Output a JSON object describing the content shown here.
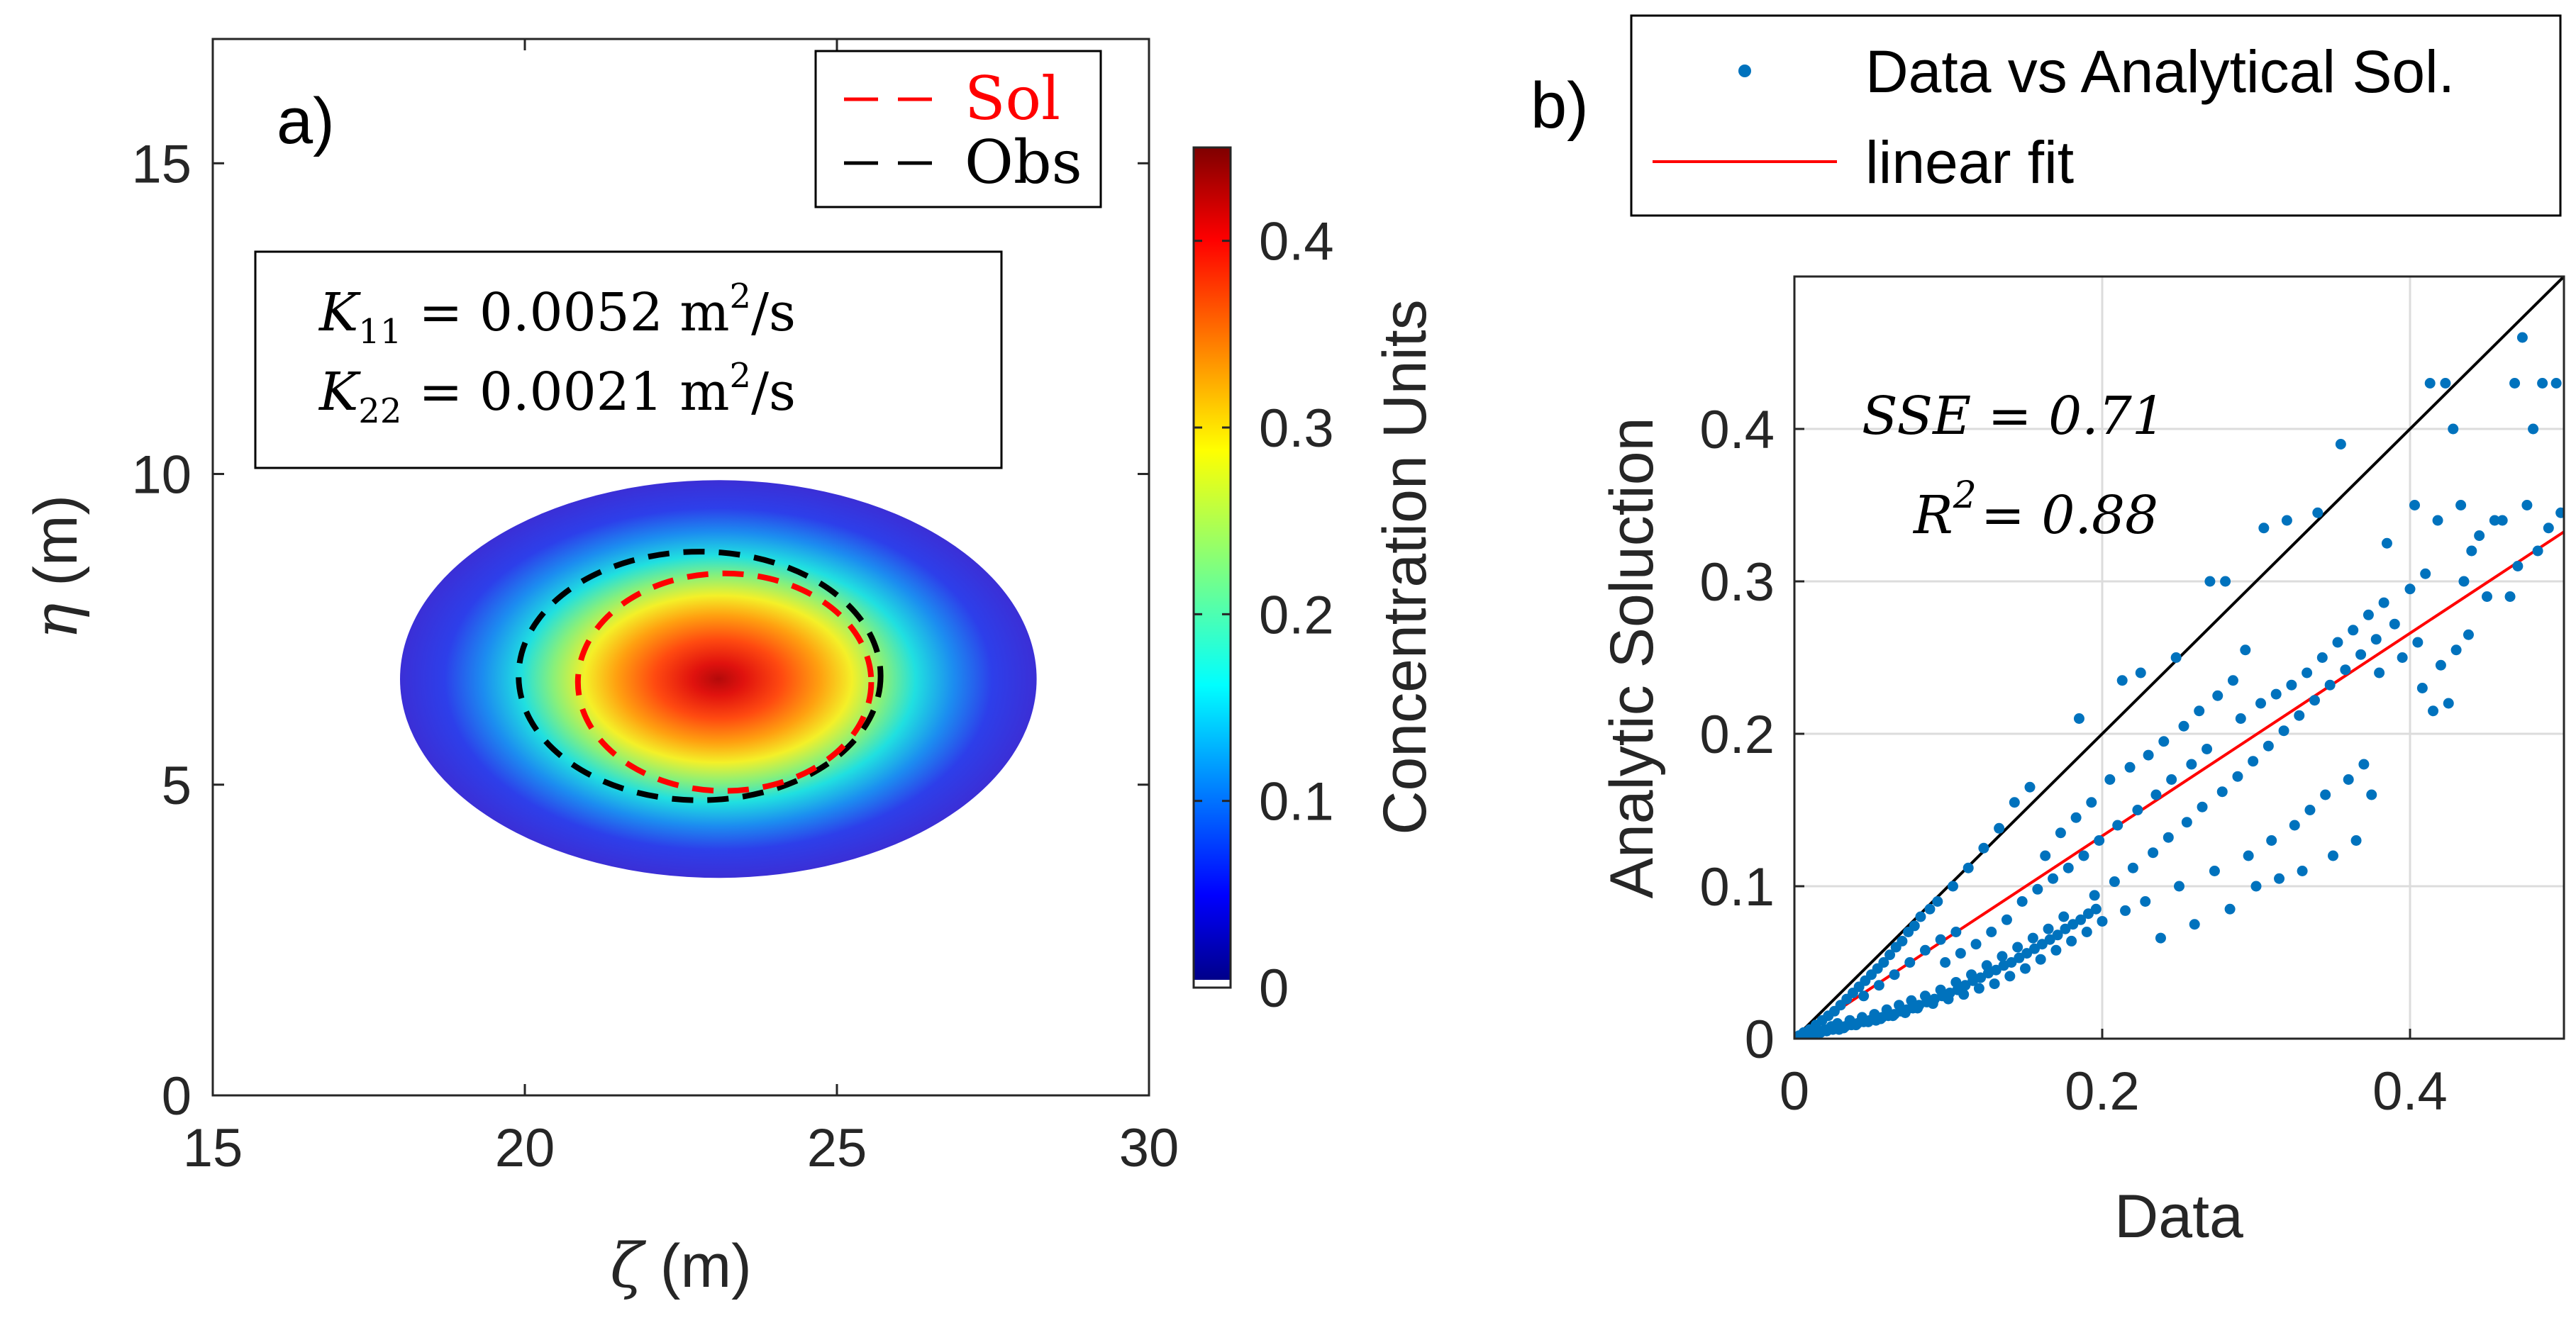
{
  "chart_data": [
    {
      "type": "heatmap",
      "panel_label": "a)",
      "xlabel_symbol": "ζ",
      "xlabel_unit": " (m)",
      "ylabel_symbol": "η",
      "ylabel_unit": " (m)",
      "xlim": [
        15,
        30
      ],
      "ylim": [
        0,
        17
      ],
      "x_ticks": [
        "15",
        "20",
        "25",
        "30"
      ],
      "y_ticks": [
        "0",
        "5",
        "10",
        "15"
      ],
      "field": {
        "center": [
          23.1,
          6.7
        ],
        "extent_x": [
          18.0,
          28.2
        ],
        "extent_y": [
          3.5,
          9.9
        ],
        "peak": 0.45
      },
      "contours": [
        {
          "name": "Sol",
          "color": "#ff0000",
          "center": [
            23.2,
            6.65
          ],
          "rx": 2.35,
          "ry": 1.75
        },
        {
          "name": "Obs",
          "color": "#000000",
          "center": [
            22.8,
            6.75
          ],
          "rx": 2.9,
          "ry": 2.0
        }
      ],
      "legend": [
        {
          "label": "Sol",
          "color": "#ff0000"
        },
        {
          "label": "Obs",
          "color": "#000000"
        }
      ],
      "annotation": {
        "line1": {
          "sym": "K",
          "sub": "11",
          "eq": "= 0.0052 m",
          "sup": "2",
          "tail": "/s"
        },
        "line2": {
          "sym": "K",
          "sub": "22",
          "eq": "= 0.0021 m",
          "sup": "2",
          "tail": "/s"
        }
      },
      "colorbar": {
        "label": "Concentration Units",
        "range": [
          0,
          0.45
        ],
        "ticks": [
          "0",
          "0.1",
          "0.2",
          "0.3",
          "0.4"
        ],
        "tick_values": [
          0,
          0.1,
          0.2,
          0.3,
          0.4
        ],
        "colormap": "jet"
      }
    },
    {
      "type": "scatter",
      "panel_label": "b)",
      "xlabel": "Data",
      "ylabel": "Analytic Soluction",
      "xlim": [
        0,
        0.5
      ],
      "ylim": [
        0,
        0.5
      ],
      "x_ticks": [
        "0",
        "0.2",
        "0.4"
      ],
      "x_tick_values": [
        0,
        0.2,
        0.4
      ],
      "y_ticks": [
        "0",
        "0.1",
        "0.2",
        "0.3",
        "0.4"
      ],
      "y_tick_values": [
        0,
        0.1,
        0.2,
        0.3,
        0.4
      ],
      "grid": true,
      "point_color": "#0072bd",
      "fit_color": "#ff0000",
      "legend": [
        {
          "label": "Data vs Analytical Sol.",
          "kind": "marker",
          "color": "#0072bd"
        },
        {
          "label": "linear fit",
          "kind": "line",
          "color": "#ff0000"
        }
      ],
      "identity_line": {
        "from": [
          0,
          0
        ],
        "to": [
          0.5,
          0.5
        ],
        "color": "#000000"
      },
      "fit_line": {
        "slope": 0.665,
        "intercept": 0.0
      },
      "annotations": {
        "sse": "SSE = 0.71",
        "r2_base": "R",
        "r2_sup": "2",
        "r2_val": "= 0.88"
      },
      "points": [
        [
          0.003,
          0.002
        ],
        [
          0.006,
          0.004
        ],
        [
          0.008,
          0.003
        ],
        [
          0.01,
          0.006
        ],
        [
          0.012,
          0.004
        ],
        [
          0.014,
          0.009
        ],
        [
          0.016,
          0.005
        ],
        [
          0.018,
          0.012
        ],
        [
          0.02,
          0.006
        ],
        [
          0.022,
          0.015
        ],
        [
          0.024,
          0.008
        ],
        [
          0.026,
          0.018
        ],
        [
          0.028,
          0.01
        ],
        [
          0.03,
          0.022
        ],
        [
          0.032,
          0.007
        ],
        [
          0.034,
          0.026
        ],
        [
          0.036,
          0.012
        ],
        [
          0.038,
          0.03
        ],
        [
          0.04,
          0.009
        ],
        [
          0.042,
          0.034
        ],
        [
          0.044,
          0.014
        ],
        [
          0.046,
          0.038
        ],
        [
          0.048,
          0.011
        ],
        [
          0.05,
          0.042
        ],
        [
          0.052,
          0.016
        ],
        [
          0.054,
          0.046
        ],
        [
          0.056,
          0.013
        ],
        [
          0.058,
          0.05
        ],
        [
          0.06,
          0.019
        ],
        [
          0.062,
          0.055
        ],
        [
          0.064,
          0.015
        ],
        [
          0.066,
          0.06
        ],
        [
          0.068,
          0.022
        ],
        [
          0.07,
          0.064
        ],
        [
          0.072,
          0.017
        ],
        [
          0.074,
          0.07
        ],
        [
          0.076,
          0.025
        ],
        [
          0.078,
          0.074
        ],
        [
          0.08,
          0.02
        ],
        [
          0.082,
          0.08
        ],
        [
          0.085,
          0.028
        ],
        [
          0.088,
          0.085
        ],
        [
          0.09,
          0.023
        ],
        [
          0.093,
          0.09
        ],
        [
          0.095,
          0.032
        ],
        [
          0.098,
          0.05
        ],
        [
          0.1,
          0.026
        ],
        [
          0.103,
          0.1
        ],
        [
          0.105,
          0.037
        ],
        [
          0.108,
          0.056
        ],
        [
          0.11,
          0.029
        ],
        [
          0.113,
          0.112
        ],
        [
          0.115,
          0.042
        ],
        [
          0.118,
          0.062
        ],
        [
          0.12,
          0.033
        ],
        [
          0.123,
          0.125
        ],
        [
          0.125,
          0.048
        ],
        [
          0.128,
          0.07
        ],
        [
          0.13,
          0.036
        ],
        [
          0.133,
          0.138
        ],
        [
          0.135,
          0.054
        ],
        [
          0.138,
          0.078
        ],
        [
          0.14,
          0.041
        ],
        [
          0.143,
          0.155
        ],
        [
          0.145,
          0.06
        ],
        [
          0.148,
          0.09
        ],
        [
          0.15,
          0.046
        ],
        [
          0.153,
          0.165
        ],
        [
          0.155,
          0.066
        ],
        [
          0.158,
          0.098
        ],
        [
          0.16,
          0.052
        ],
        [
          0.163,
          0.12
        ],
        [
          0.165,
          0.072
        ],
        [
          0.168,
          0.105
        ],
        [
          0.17,
          0.058
        ],
        [
          0.173,
          0.135
        ],
        [
          0.175,
          0.08
        ],
        [
          0.178,
          0.112
        ],
        [
          0.18,
          0.064
        ],
        [
          0.183,
          0.145
        ],
        [
          0.185,
          0.21
        ],
        [
          0.188,
          0.12
        ],
        [
          0.19,
          0.07
        ],
        [
          0.193,
          0.155
        ],
        [
          0.195,
          0.094
        ],
        [
          0.198,
          0.13
        ],
        [
          0.2,
          0.077
        ],
        [
          0.205,
          0.17
        ],
        [
          0.208,
          0.103
        ],
        [
          0.21,
          0.14
        ],
        [
          0.213,
          0.235
        ],
        [
          0.215,
          0.084
        ],
        [
          0.218,
          0.178
        ],
        [
          0.22,
          0.112
        ],
        [
          0.223,
          0.15
        ],
        [
          0.225,
          0.24
        ],
        [
          0.228,
          0.09
        ],
        [
          0.23,
          0.186
        ],
        [
          0.233,
          0.122
        ],
        [
          0.235,
          0.16
        ],
        [
          0.238,
          0.066
        ],
        [
          0.24,
          0.195
        ],
        [
          0.243,
          0.132
        ],
        [
          0.245,
          0.17
        ],
        [
          0.248,
          0.25
        ],
        [
          0.25,
          0.1
        ],
        [
          0.253,
          0.205
        ],
        [
          0.255,
          0.142
        ],
        [
          0.258,
          0.18
        ],
        [
          0.26,
          0.075
        ],
        [
          0.263,
          0.215
        ],
        [
          0.265,
          0.152
        ],
        [
          0.268,
          0.19
        ],
        [
          0.27,
          0.3
        ],
        [
          0.273,
          0.11
        ],
        [
          0.275,
          0.225
        ],
        [
          0.278,
          0.162
        ],
        [
          0.28,
          0.3
        ],
        [
          0.283,
          0.085
        ],
        [
          0.285,
          0.235
        ],
        [
          0.288,
          0.172
        ],
        [
          0.29,
          0.21
        ],
        [
          0.293,
          0.255
        ],
        [
          0.295,
          0.12
        ],
        [
          0.298,
          0.182
        ],
        [
          0.3,
          0.1
        ],
        [
          0.303,
          0.22
        ],
        [
          0.305,
          0.335
        ],
        [
          0.308,
          0.192
        ],
        [
          0.31,
          0.13
        ],
        [
          0.313,
          0.226
        ],
        [
          0.315,
          0.105
        ],
        [
          0.318,
          0.202
        ],
        [
          0.32,
          0.34
        ],
        [
          0.323,
          0.232
        ],
        [
          0.325,
          0.14
        ],
        [
          0.328,
          0.212
        ],
        [
          0.33,
          0.11
        ],
        [
          0.333,
          0.24
        ],
        [
          0.335,
          0.15
        ],
        [
          0.338,
          0.222
        ],
        [
          0.34,
          0.345
        ],
        [
          0.343,
          0.25
        ],
        [
          0.345,
          0.16
        ],
        [
          0.348,
          0.232
        ],
        [
          0.35,
          0.12
        ],
        [
          0.353,
          0.26
        ],
        [
          0.355,
          0.39
        ],
        [
          0.358,
          0.242
        ],
        [
          0.36,
          0.17
        ],
        [
          0.363,
          0.268
        ],
        [
          0.365,
          0.13
        ],
        [
          0.368,
          0.252
        ],
        [
          0.37,
          0.18
        ],
        [
          0.373,
          0.278
        ],
        [
          0.375,
          0.16
        ],
        [
          0.378,
          0.262
        ],
        [
          0.38,
          0.24
        ],
        [
          0.383,
          0.286
        ],
        [
          0.385,
          0.325
        ],
        [
          0.39,
          0.272
        ],
        [
          0.395,
          0.25
        ],
        [
          0.4,
          0.295
        ],
        [
          0.403,
          0.35
        ],
        [
          0.405,
          0.26
        ],
        [
          0.408,
          0.23
        ],
        [
          0.41,
          0.305
        ],
        [
          0.413,
          0.43
        ],
        [
          0.415,
          0.215
        ],
        [
          0.418,
          0.34
        ],
        [
          0.42,
          0.245
        ],
        [
          0.423,
          0.43
        ],
        [
          0.425,
          0.22
        ],
        [
          0.428,
          0.4
        ],
        [
          0.43,
          0.255
        ],
        [
          0.433,
          0.35
        ],
        [
          0.435,
          0.3
        ],
        [
          0.438,
          0.265
        ],
        [
          0.44,
          0.32
        ],
        [
          0.445,
          0.33
        ],
        [
          0.45,
          0.29
        ],
        [
          0.455,
          0.34
        ],
        [
          0.46,
          0.34
        ],
        [
          0.465,
          0.29
        ],
        [
          0.468,
          0.43
        ],
        [
          0.47,
          0.31
        ],
        [
          0.473,
          0.46
        ],
        [
          0.476,
          0.35
        ],
        [
          0.48,
          0.4
        ],
        [
          0.483,
          0.32
        ],
        [
          0.486,
          0.43
        ],
        [
          0.49,
          0.335
        ],
        [
          0.495,
          0.43
        ],
        [
          0.498,
          0.345
        ],
        [
          0.004,
          0.001
        ],
        [
          0.009,
          0.002
        ],
        [
          0.013,
          0.003
        ],
        [
          0.017,
          0.004
        ],
        [
          0.021,
          0.005
        ],
        [
          0.025,
          0.006
        ],
        [
          0.029,
          0.006
        ],
        [
          0.033,
          0.008
        ],
        [
          0.037,
          0.009
        ],
        [
          0.041,
          0.01
        ],
        [
          0.045,
          0.011
        ],
        [
          0.049,
          0.012
        ],
        [
          0.053,
          0.012
        ],
        [
          0.057,
          0.014
        ],
        [
          0.061,
          0.015
        ],
        [
          0.065,
          0.016
        ],
        [
          0.069,
          0.018
        ],
        [
          0.073,
          0.019
        ],
        [
          0.077,
          0.02
        ],
        [
          0.081,
          0.022
        ],
        [
          0.086,
          0.024
        ],
        [
          0.091,
          0.026
        ],
        [
          0.096,
          0.028
        ],
        [
          0.101,
          0.03
        ],
        [
          0.106,
          0.032
        ],
        [
          0.111,
          0.035
        ],
        [
          0.116,
          0.038
        ],
        [
          0.121,
          0.04
        ],
        [
          0.126,
          0.043
        ],
        [
          0.131,
          0.045
        ],
        [
          0.136,
          0.048
        ],
        [
          0.141,
          0.05
        ],
        [
          0.146,
          0.053
        ],
        [
          0.151,
          0.056
        ],
        [
          0.156,
          0.059
        ],
        [
          0.161,
          0.062
        ],
        [
          0.166,
          0.065
        ],
        [
          0.171,
          0.068
        ],
        [
          0.176,
          0.072
        ],
        [
          0.181,
          0.075
        ],
        [
          0.186,
          0.078
        ],
        [
          0.191,
          0.082
        ],
        [
          0.196,
          0.085
        ],
        [
          0.045,
          0.028
        ],
        [
          0.055,
          0.035
        ],
        [
          0.065,
          0.042
        ],
        [
          0.075,
          0.05
        ],
        [
          0.085,
          0.058
        ],
        [
          0.095,
          0.065
        ],
        [
          0.105,
          0.07
        ]
      ]
    }
  ]
}
